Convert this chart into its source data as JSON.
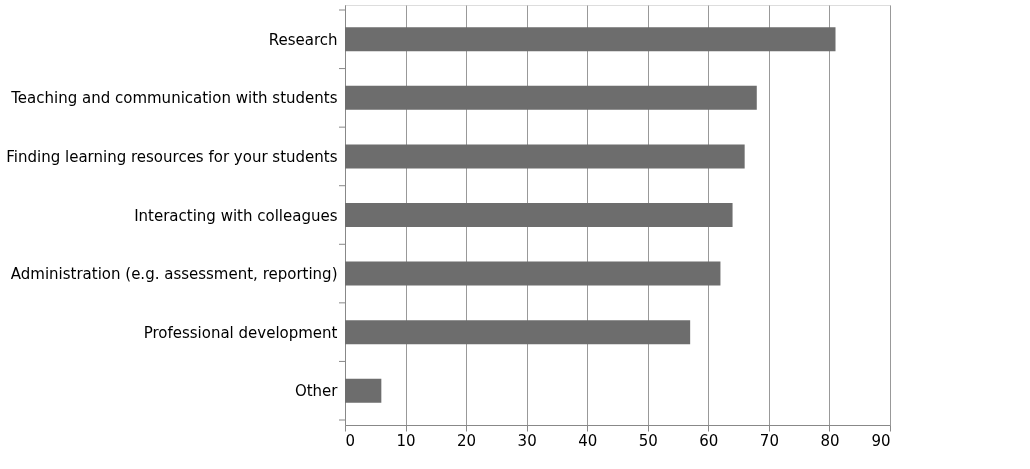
{
  "chart_data": {
    "type": "bar",
    "orientation": "horizontal",
    "categories": [
      "Research",
      "Teaching and communication with students",
      "Finding learning resources for your students",
      "Interacting with colleagues",
      "Administration (e.g. assessment, reporting)",
      "Professional development",
      "Other"
    ],
    "values": [
      81,
      68,
      66,
      64,
      62,
      57,
      6
    ],
    "color": "#6d6d6d",
    "xlim": [
      0,
      90
    ],
    "xticks": [
      0,
      10,
      20,
      30,
      40,
      50,
      60,
      70,
      80,
      90
    ],
    "grid": "x"
  }
}
